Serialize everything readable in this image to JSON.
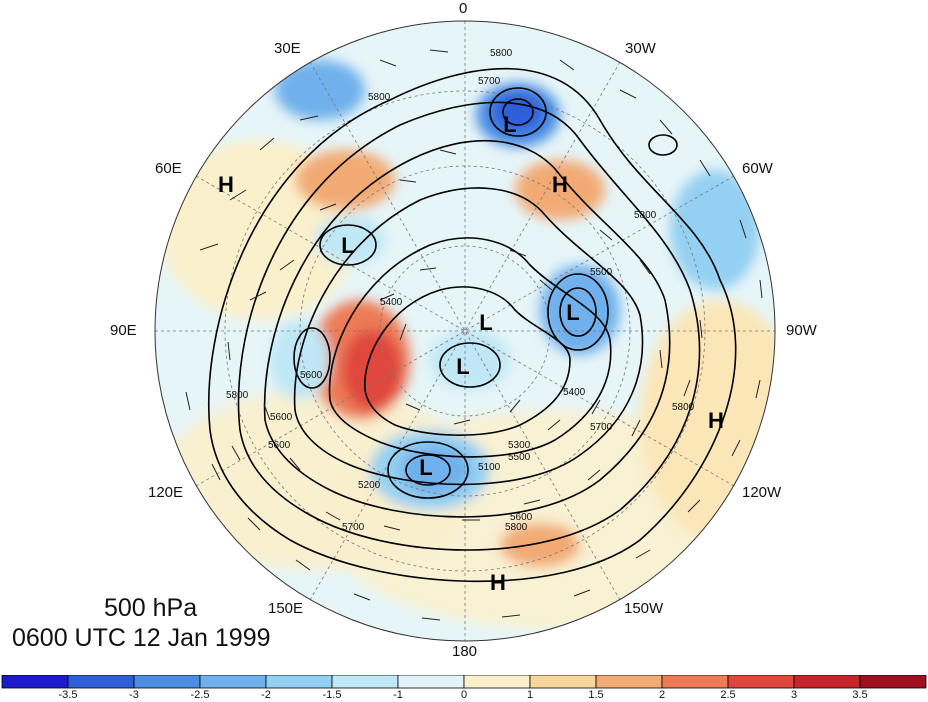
{
  "title": {
    "level": "500 hPa",
    "time": "0600 UTC 12 Jan 1999"
  },
  "longitude_labels": [
    "0",
    "30W",
    "60W",
    "90W",
    "120W",
    "150W",
    "180",
    "150E",
    "120E",
    "90E",
    "60E",
    "30E"
  ],
  "contour_labels": [
    "5800",
    "5700",
    "5600",
    "5500",
    "5400",
    "5300",
    "5200",
    "5100"
  ],
  "centers": [
    {
      "type": "L",
      "name": "low-north-atlantic"
    },
    {
      "type": "H",
      "name": "high-west-atlantic"
    },
    {
      "type": "H",
      "name": "high-europe"
    },
    {
      "type": "L",
      "name": "low-arctic-scandinavia"
    },
    {
      "type": "L",
      "name": "low-hudson-bay"
    },
    {
      "type": "L",
      "name": "low-arctic-center"
    },
    {
      "type": "L",
      "name": "low-siberia"
    },
    {
      "type": "H",
      "name": "high-pacific-northwest"
    },
    {
      "type": "L",
      "name": "low-kamchatka"
    },
    {
      "type": "H",
      "name": "high-north-pacific"
    }
  ],
  "colorbar": {
    "ticks": [
      "-3.5",
      "-3",
      "-2.5",
      "-2",
      "-1.5",
      "-1",
      "0",
      "1",
      "1.5",
      "2",
      "2.5",
      "3",
      "3.5"
    ],
    "colors": [
      "#1b1bcc",
      "#2e5fd9",
      "#4a8de3",
      "#6fb0ec",
      "#94d0f2",
      "#bfe7f5",
      "#e2f4f8",
      "#fbf0cc",
      "#f7d79c",
      "#f2aa74",
      "#ec7b56",
      "#e0463c",
      "#c5252a",
      "#9e1020"
    ]
  }
}
